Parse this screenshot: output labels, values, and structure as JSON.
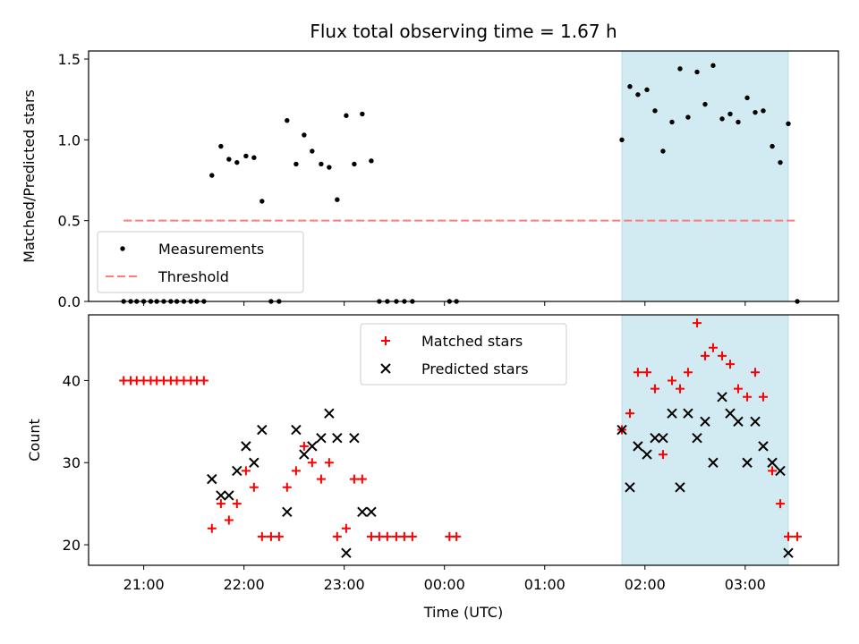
{
  "chart_data": [
    {
      "type": "scatter",
      "title": "Flux total observing time = 1.67 h",
      "xlabel": "",
      "ylabel": "Matched/Predicted stars",
      "xlim": [
        20.45,
        27.93
      ],
      "ylim": [
        0,
        1.55
      ],
      "yticks": [
        0.0,
        0.5,
        1.0,
        1.5
      ],
      "ytick_labels": [
        "0.0",
        "0.5",
        "1.0",
        "1.5"
      ],
      "grid": false,
      "legend_position": "lower-left",
      "shaded_span": {
        "x_start": 25.77,
        "x_end": 27.43,
        "color": "#add8e6"
      },
      "series": [
        {
          "name": "Measurements",
          "marker": "dot",
          "color": "#000000",
          "points": [
            [
              20.8,
              0
            ],
            [
              20.87,
              0
            ],
            [
              20.93,
              0
            ],
            [
              21.0,
              0
            ],
            [
              21.07,
              0
            ],
            [
              21.13,
              0
            ],
            [
              21.2,
              0
            ],
            [
              21.27,
              0
            ],
            [
              21.33,
              0
            ],
            [
              21.4,
              0
            ],
            [
              21.47,
              0
            ],
            [
              21.53,
              0
            ],
            [
              21.6,
              0
            ],
            [
              21.68,
              0.78
            ],
            [
              21.77,
              0.96
            ],
            [
              21.85,
              0.88
            ],
            [
              21.93,
              0.86
            ],
            [
              22.02,
              0.9
            ],
            [
              22.1,
              0.89
            ],
            [
              22.18,
              0.62
            ],
            [
              22.27,
              0
            ],
            [
              22.35,
              0
            ],
            [
              22.43,
              1.12
            ],
            [
              22.52,
              0.85
            ],
            [
              22.6,
              1.03
            ],
            [
              22.68,
              0.93
            ],
            [
              22.77,
              0.85
            ],
            [
              22.85,
              0.83
            ],
            [
              22.93,
              0.63
            ],
            [
              23.02,
              1.15
            ],
            [
              23.1,
              0.85
            ],
            [
              23.18,
              1.16
            ],
            [
              23.27,
              0.87
            ],
            [
              23.35,
              0
            ],
            [
              23.43,
              0
            ],
            [
              23.52,
              0
            ],
            [
              23.6,
              0
            ],
            [
              23.68,
              0
            ],
            [
              24.05,
              0
            ],
            [
              24.12,
              0
            ],
            [
              25.77,
              1.0
            ],
            [
              25.85,
              1.33
            ],
            [
              25.93,
              1.28
            ],
            [
              26.02,
              1.31
            ],
            [
              26.1,
              1.18
            ],
            [
              26.18,
              0.93
            ],
            [
              26.27,
              1.11
            ],
            [
              26.35,
              1.44
            ],
            [
              26.43,
              1.14
            ],
            [
              26.52,
              1.42
            ],
            [
              26.6,
              1.22
            ],
            [
              26.68,
              1.46
            ],
            [
              26.77,
              1.13
            ],
            [
              26.85,
              1.16
            ],
            [
              26.93,
              1.11
            ],
            [
              27.02,
              1.26
            ],
            [
              27.1,
              1.17
            ],
            [
              27.18,
              1.18
            ],
            [
              27.27,
              0.96
            ],
            [
              27.35,
              0.86
            ],
            [
              27.43,
              1.1
            ],
            [
              27.52,
              0
            ]
          ]
        },
        {
          "name": "Threshold",
          "marker": "dashed-line",
          "color": "#ff7a7a",
          "x": [
            20.8,
            27.52
          ],
          "y": [
            0.5,
            0.5
          ]
        }
      ]
    },
    {
      "type": "scatter",
      "title": "",
      "xlabel": "Time (UTC)",
      "ylabel": "Count",
      "xlim": [
        20.45,
        27.93
      ],
      "ylim": [
        17.5,
        48.0
      ],
      "xticks": [
        21,
        22,
        23,
        24,
        25,
        26,
        27
      ],
      "xtick_labels": [
        "21:00",
        "22:00",
        "23:00",
        "00:00",
        "01:00",
        "02:00",
        "03:00"
      ],
      "yticks": [
        20,
        30,
        40
      ],
      "ytick_labels": [
        "20",
        "30",
        "40"
      ],
      "grid": false,
      "legend_position": "top-center",
      "shaded_span": {
        "x_start": 25.77,
        "x_end": 27.43,
        "color": "#add8e6"
      },
      "series": [
        {
          "name": "Matched stars",
          "marker": "plus",
          "color": "#ff0000",
          "points": [
            [
              20.8,
              40
            ],
            [
              20.87,
              40
            ],
            [
              20.93,
              40
            ],
            [
              21.0,
              40
            ],
            [
              21.07,
              40
            ],
            [
              21.13,
              40
            ],
            [
              21.2,
              40
            ],
            [
              21.27,
              40
            ],
            [
              21.33,
              40
            ],
            [
              21.4,
              40
            ],
            [
              21.47,
              40
            ],
            [
              21.53,
              40
            ],
            [
              21.6,
              40
            ],
            [
              21.68,
              22
            ],
            [
              21.77,
              25
            ],
            [
              21.85,
              23
            ],
            [
              21.93,
              25
            ],
            [
              22.02,
              29
            ],
            [
              22.1,
              27
            ],
            [
              22.18,
              21
            ],
            [
              22.27,
              21
            ],
            [
              22.35,
              21
            ],
            [
              22.43,
              27
            ],
            [
              22.52,
              29
            ],
            [
              22.6,
              32
            ],
            [
              22.68,
              30
            ],
            [
              22.77,
              28
            ],
            [
              22.85,
              30
            ],
            [
              22.93,
              21
            ],
            [
              23.02,
              22
            ],
            [
              23.1,
              28
            ],
            [
              23.18,
              28
            ],
            [
              23.27,
              21
            ],
            [
              23.35,
              21
            ],
            [
              23.43,
              21
            ],
            [
              23.52,
              21
            ],
            [
              23.6,
              21
            ],
            [
              23.68,
              21
            ],
            [
              24.05,
              21
            ],
            [
              24.12,
              21
            ],
            [
              25.77,
              34
            ],
            [
              25.85,
              36
            ],
            [
              25.93,
              41
            ],
            [
              26.02,
              41
            ],
            [
              26.1,
              39
            ],
            [
              26.18,
              31
            ],
            [
              26.27,
              40
            ],
            [
              26.35,
              39
            ],
            [
              26.43,
              41
            ],
            [
              26.52,
              47
            ],
            [
              26.6,
              43
            ],
            [
              26.68,
              44
            ],
            [
              26.77,
              43
            ],
            [
              26.85,
              42
            ],
            [
              26.93,
              39
            ],
            [
              27.02,
              38
            ],
            [
              27.1,
              41
            ],
            [
              27.18,
              38
            ],
            [
              27.27,
              29
            ],
            [
              27.35,
              25
            ],
            [
              27.43,
              21
            ],
            [
              27.52,
              21
            ]
          ]
        },
        {
          "name": "Predicted stars",
          "marker": "x",
          "color": "#000000",
          "points": [
            [
              21.68,
              28
            ],
            [
              21.77,
              26
            ],
            [
              21.85,
              26
            ],
            [
              21.93,
              29
            ],
            [
              22.02,
              32
            ],
            [
              22.1,
              30
            ],
            [
              22.18,
              34
            ],
            [
              22.43,
              24
            ],
            [
              22.52,
              34
            ],
            [
              22.6,
              31
            ],
            [
              22.68,
              32
            ],
            [
              22.77,
              33
            ],
            [
              22.85,
              36
            ],
            [
              22.93,
              33
            ],
            [
              23.02,
              19
            ],
            [
              23.1,
              33
            ],
            [
              23.18,
              24
            ],
            [
              23.27,
              24
            ],
            [
              25.77,
              34
            ],
            [
              25.85,
              27
            ],
            [
              25.93,
              32
            ],
            [
              26.02,
              31
            ],
            [
              26.1,
              33
            ],
            [
              26.18,
              33
            ],
            [
              26.27,
              36
            ],
            [
              26.35,
              27
            ],
            [
              26.43,
              36
            ],
            [
              26.52,
              33
            ],
            [
              26.6,
              35
            ],
            [
              26.68,
              30
            ],
            [
              26.77,
              38
            ],
            [
              26.85,
              36
            ],
            [
              26.93,
              35
            ],
            [
              27.02,
              30
            ],
            [
              27.1,
              35
            ],
            [
              27.18,
              32
            ],
            [
              27.27,
              30
            ],
            [
              27.35,
              29
            ],
            [
              27.43,
              19
            ]
          ]
        }
      ]
    }
  ]
}
